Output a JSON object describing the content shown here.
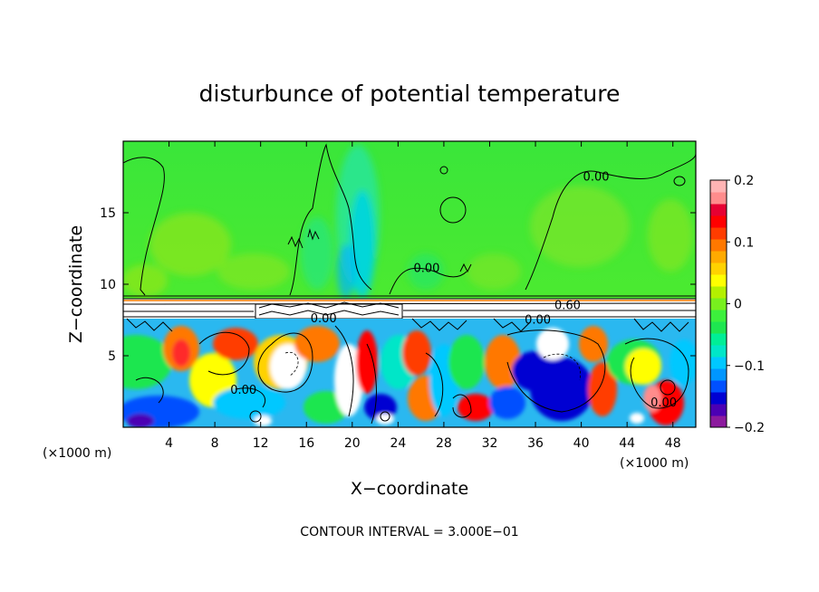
{
  "chart_data": {
    "type": "heatmap",
    "title": "disturbunce of potential temperature",
    "xlabel": "X−coordinate",
    "ylabel": "Z−coordinate",
    "x_scale_note": "(×1000 m)",
    "x_scale_note_right": "(×1000 m)",
    "xlim": [
      0,
      50
    ],
    "ylim": [
      0,
      20
    ],
    "x_ticks": [
      4,
      8,
      12,
      16,
      20,
      24,
      28,
      32,
      36,
      40,
      44,
      48
    ],
    "x_tick_labels": [
      "4",
      "8",
      "12",
      "16",
      "20",
      "24",
      "28",
      "32",
      "36",
      "40",
      "44",
      "48"
    ],
    "y_ticks": [
      5,
      10,
      15
    ],
    "y_tick_labels": [
      "5",
      "10",
      "15"
    ],
    "colorbar": {
      "range": [
        -0.2,
        0.2
      ],
      "tick_values": [
        0.2,
        0.1,
        0,
        -0.1,
        -0.2
      ],
      "tick_labels": [
        "0.2",
        "0.1",
        "0",
        "−0.1",
        "−0.2"
      ],
      "colors": [
        "#8c1a9e",
        "#4b00b4",
        "#0000d2",
        "#0050ff",
        "#0096ff",
        "#00c8ff",
        "#00e6c8",
        "#00ee96",
        "#1ee650",
        "#3cf03c",
        "#78f01e",
        "#b4f000",
        "#ffff00",
        "#ffd200",
        "#ffaa00",
        "#ff7800",
        "#ff3c00",
        "#ff0000",
        "#e60032",
        "#ff8c8c",
        "#ffb4b4"
      ]
    },
    "contour_labels": [
      {
        "text": "0.00",
        "x": 41.3,
        "z": 17.5
      },
      {
        "text": "0.00",
        "x": 26.5,
        "z": 11.1
      },
      {
        "text": "0.60",
        "x": 38.8,
        "z": 8.5
      },
      {
        "text": "0.00",
        "x": 17.5,
        "z": 7.6
      },
      {
        "text": "0.00",
        "x": 36.2,
        "z": 7.5
      },
      {
        "text": "0.00",
        "x": 10.5,
        "z": 2.6
      },
      {
        "text": "0.00",
        "x": 47.2,
        "z": 1.7
      }
    ],
    "contour_interval_text": "CONTOUR INTERVAL =  3.000E−01"
  }
}
